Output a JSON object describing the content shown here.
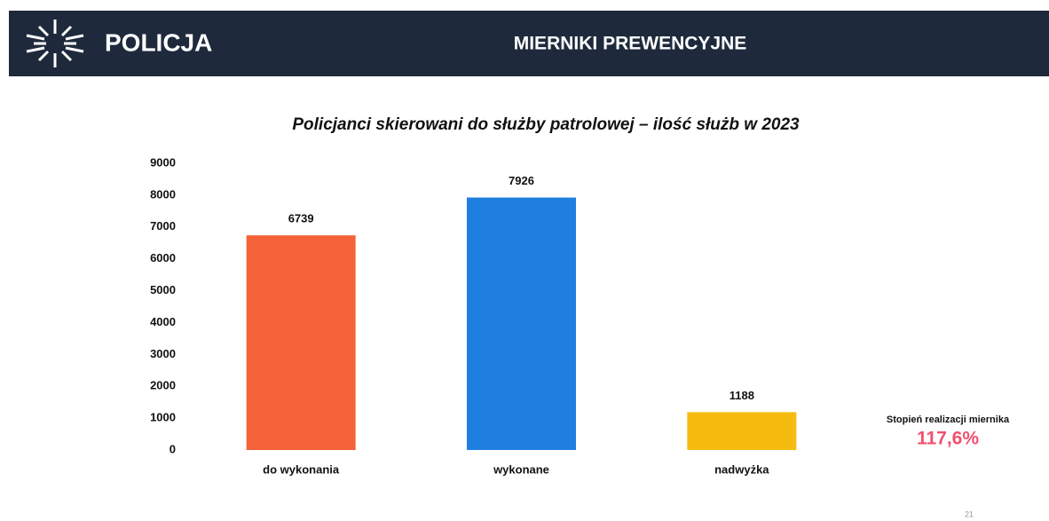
{
  "header": {
    "logo": "POLICJA",
    "title": "MIERNIKI PREWENCYJNE"
  },
  "chart_data": {
    "type": "bar",
    "title": "Policjanci skierowani do służby patrolowej – ilość służb w 2023",
    "categories": [
      "do wykonania",
      "wykonane",
      "nadwyżka"
    ],
    "values": [
      6739,
      7926,
      1188
    ],
    "colors": [
      "#f4623a",
      "#1f7fe0",
      "#f5bc0f"
    ],
    "ylim": [
      0,
      9000
    ],
    "yticks": [
      0,
      1000,
      2000,
      3000,
      4000,
      5000,
      6000,
      7000,
      8000,
      9000
    ],
    "grid": false,
    "annotations": [
      "Stopień realizacji miernika",
      "117,6%"
    ]
  },
  "page_number": "21"
}
